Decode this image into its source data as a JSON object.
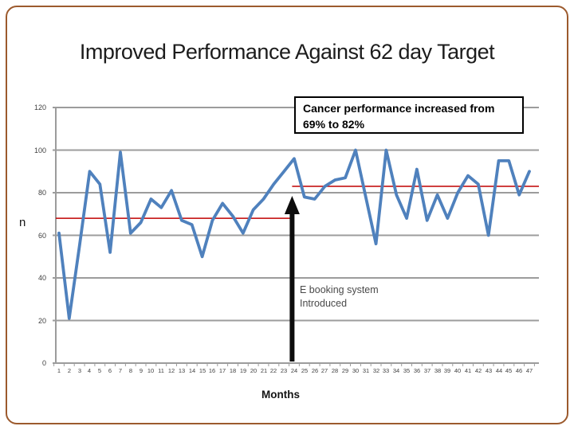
{
  "slide": {
    "title": "Improved Performance Against 62 day Target",
    "callout": {
      "line1": "Cancer performance increased from",
      "line2": "69% to 82%"
    },
    "annotation": {
      "line1": "E booking system",
      "line2": "Introduced"
    },
    "y_axis_label": "n",
    "x_axis_label": "Months"
  },
  "colors": {
    "frame": "#9c5a2d",
    "series": "#4f81bd",
    "target_line": "#c00000",
    "gridline": "#9c9c9c",
    "arrow": "#0d0d0d"
  },
  "chart_data": {
    "type": "line",
    "title": "Improved Performance Against 62 day Target",
    "xlabel": "Months",
    "ylabel": "n",
    "ylim": [
      0,
      120
    ],
    "y_ticks": [
      0,
      20,
      40,
      60,
      80,
      100,
      120
    ],
    "grid": true,
    "x": [
      1,
      2,
      3,
      4,
      5,
      6,
      7,
      8,
      9,
      10,
      11,
      12,
      13,
      14,
      15,
      16,
      17,
      18,
      19,
      20,
      21,
      22,
      23,
      24,
      25,
      26,
      27,
      28,
      29,
      30,
      31,
      32,
      33,
      34,
      35,
      36,
      37,
      38,
      39,
      40,
      41,
      42,
      43,
      44,
      45,
      46,
      47
    ],
    "values": [
      61,
      21,
      55,
      90,
      84,
      52,
      99,
      61,
      66,
      77,
      73,
      81,
      67,
      65,
      50,
      67,
      75,
      69,
      61,
      72,
      77,
      84,
      90,
      96,
      78,
      77,
      83,
      86,
      87,
      100,
      78,
      56,
      100,
      79,
      68,
      91,
      67,
      79,
      68,
      80,
      88,
      84,
      60,
      95,
      95,
      79,
      90
    ],
    "series_color": "#4f81bd",
    "target_lines": [
      {
        "value": 68,
        "from_month": 0.69,
        "to_month": 23.8,
        "color": "#c00000"
      },
      {
        "value": 83,
        "from_month": 23.8,
        "to_month": 47.94,
        "color": "#c00000"
      }
    ],
    "annotation_arrow": {
      "month": 23.8,
      "points_at_value_top": 78.5,
      "base_value": 0.8
    }
  }
}
